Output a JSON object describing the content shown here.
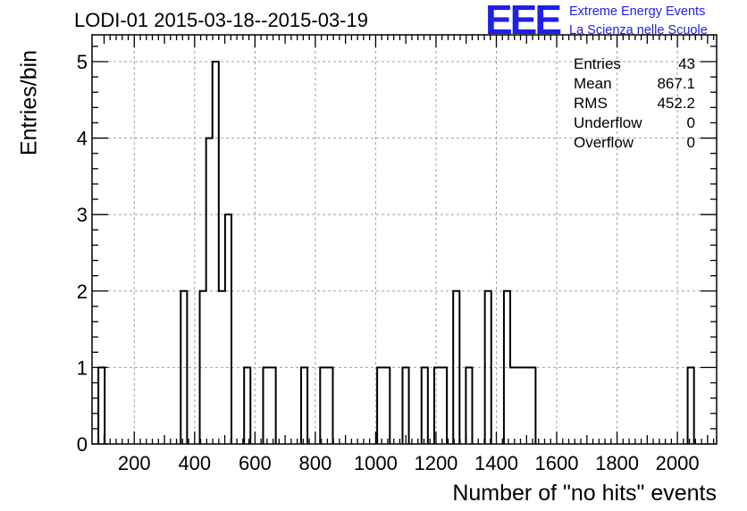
{
  "title": "LODI-01 2015-03-18--2015-03-19",
  "logo": {
    "mark": "EEE",
    "line1": "Extreme Energy Events",
    "line2": "La Scienza nelle Scuole"
  },
  "stats": [
    {
      "label": "Entries",
      "value": "43"
    },
    {
      "label": "Mean",
      "value": "867.1"
    },
    {
      "label": "RMS",
      "value": "452.2"
    },
    {
      "label": "Underflow",
      "value": "0"
    },
    {
      "label": "Overflow",
      "value": "0"
    }
  ],
  "colors": {
    "logo": "#1f1fe8",
    "line": "#000000",
    "grid": "#a0a0a0"
  },
  "chart_data": {
    "type": "bar",
    "histogram": true,
    "title": "LODI-01 2015-03-18--2015-03-19",
    "xlabel": "Number of \"no hits\" events",
    "ylabel": "Entries/bin",
    "xlim": [
      60,
      2130
    ],
    "ylim": [
      0,
      5.35
    ],
    "bin_width": 21,
    "grid": true,
    "xticks": [
      200,
      400,
      600,
      800,
      1000,
      1200,
      1400,
      1600,
      1800,
      2000
    ],
    "yticks": [
      0,
      1,
      2,
      3,
      4,
      5
    ],
    "bins": [
      {
        "x": 81,
        "y": 1
      },
      {
        "x": 354,
        "y": 2
      },
      {
        "x": 417,
        "y": 2
      },
      {
        "x": 438,
        "y": 4
      },
      {
        "x": 459,
        "y": 5
      },
      {
        "x": 480,
        "y": 2
      },
      {
        "x": 501,
        "y": 3
      },
      {
        "x": 564,
        "y": 1
      },
      {
        "x": 627,
        "y": 1
      },
      {
        "x": 648,
        "y": 1
      },
      {
        "x": 753,
        "y": 1
      },
      {
        "x": 816,
        "y": 1
      },
      {
        "x": 837,
        "y": 1
      },
      {
        "x": 1005,
        "y": 1
      },
      {
        "x": 1026,
        "y": 1
      },
      {
        "x": 1089,
        "y": 1
      },
      {
        "x": 1152,
        "y": 1
      },
      {
        "x": 1194,
        "y": 1
      },
      {
        "x": 1215,
        "y": 1
      },
      {
        "x": 1257,
        "y": 2
      },
      {
        "x": 1299,
        "y": 1
      },
      {
        "x": 1362,
        "y": 2
      },
      {
        "x": 1425,
        "y": 2
      },
      {
        "x": 1446,
        "y": 1
      },
      {
        "x": 1467,
        "y": 1
      },
      {
        "x": 1488,
        "y": 1
      },
      {
        "x": 1509,
        "y": 1
      },
      {
        "x": 2034,
        "y": 1
      }
    ]
  }
}
